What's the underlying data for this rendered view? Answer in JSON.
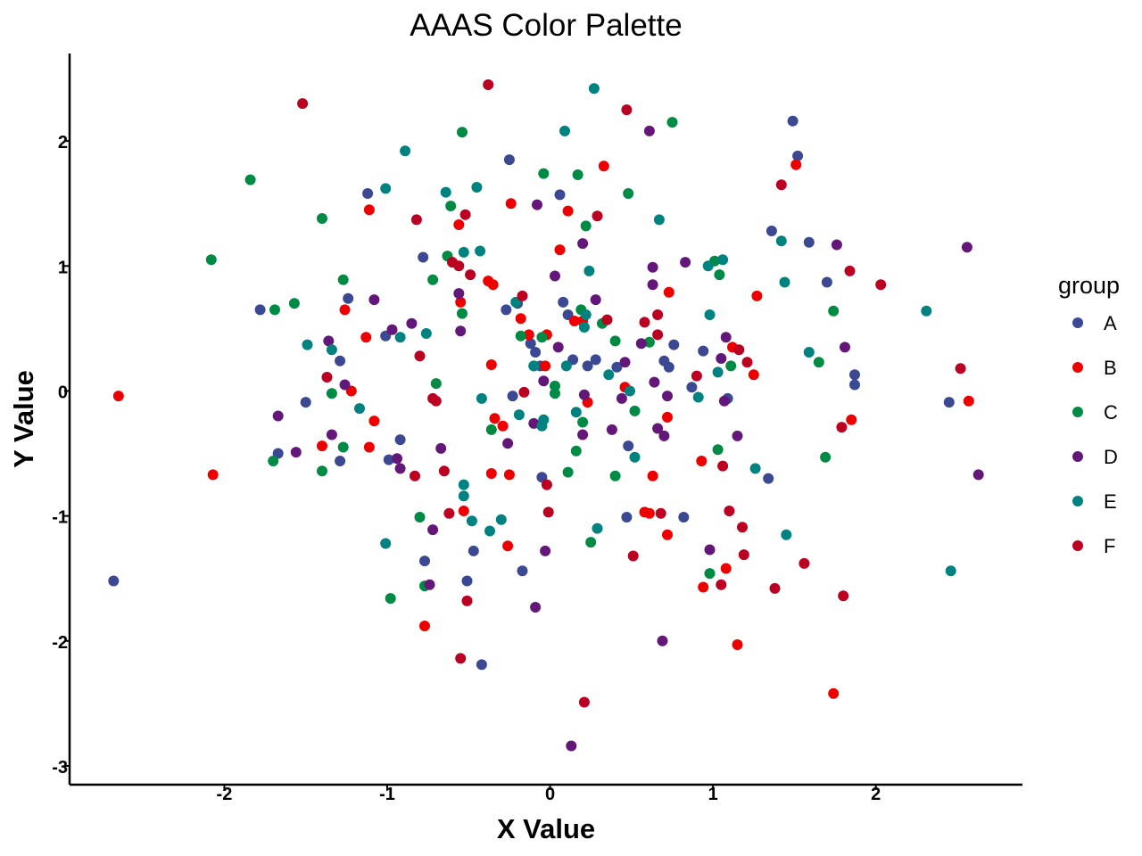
{
  "chart_data": {
    "type": "scatter",
    "title": "AAAS Color Palette",
    "xlabel": "X Value",
    "ylabel": "Y Value",
    "xlim": [
      -2.95,
      2.9
    ],
    "ylim": [
      -3.15,
      2.7
    ],
    "xticks": [
      -2,
      -1,
      0,
      1,
      2
    ],
    "yticks": [
      -3,
      -2,
      -1,
      0,
      1,
      2
    ],
    "xtick_labels": [
      "-2",
      "-1",
      "0",
      "1",
      "2"
    ],
    "ytick_labels": [
      "-3",
      "-2",
      "-1",
      "0",
      "1",
      "2"
    ],
    "grid": false,
    "legend": {
      "title": "group",
      "position": "right"
    },
    "series": [
      {
        "name": "A",
        "color": "#3B4992",
        "points": [
          [
            -2.68,
            -1.52
          ],
          [
            -1.78,
            0.65
          ],
          [
            -1.67,
            -0.5
          ],
          [
            -1.5,
            -0.09
          ],
          [
            -1.29,
            -0.56
          ],
          [
            -1.29,
            0.24
          ],
          [
            -1.24,
            0.74
          ],
          [
            -1.12,
            1.58
          ],
          [
            -1.01,
            0.44
          ],
          [
            -0.99,
            -0.55
          ],
          [
            -0.92,
            -0.39
          ],
          [
            -0.78,
            1.07
          ],
          [
            -0.77,
            -1.36
          ],
          [
            -0.51,
            -1.52
          ],
          [
            -0.47,
            -1.28
          ],
          [
            -0.42,
            -2.19
          ],
          [
            -0.27,
            0.65
          ],
          [
            -0.25,
            1.85
          ],
          [
            -0.23,
            -0.04
          ],
          [
            -0.2,
            0.7
          ],
          [
            -0.17,
            -1.44
          ],
          [
            -0.12,
            0.38
          ],
          [
            -0.09,
            0.31
          ],
          [
            -0.06,
            0.2
          ],
          [
            -0.05,
            -0.69
          ],
          [
            0.06,
            1.57
          ],
          [
            0.08,
            0.71
          ],
          [
            0.11,
            0.61
          ],
          [
            0.14,
            0.25
          ],
          [
            0.23,
            0.2
          ],
          [
            0.28,
            0.25
          ],
          [
            0.41,
            0.19
          ],
          [
            0.47,
            -1.01
          ],
          [
            0.48,
            -0.44
          ],
          [
            0.7,
            0.24
          ],
          [
            0.73,
            0.19
          ],
          [
            0.76,
            0.37
          ],
          [
            0.82,
            -1.01
          ],
          [
            0.87,
            0.03
          ],
          [
            0.94,
            0.32
          ],
          [
            1.09,
            -0.06
          ],
          [
            1.36,
            1.28
          ],
          [
            1.34,
            -0.7
          ],
          [
            1.49,
            2.16
          ],
          [
            1.52,
            1.88
          ],
          [
            1.59,
            1.19
          ],
          [
            1.7,
            0.87
          ],
          [
            1.87,
            0.13
          ],
          [
            1.87,
            0.05
          ],
          [
            2.45,
            -0.09
          ]
        ]
      },
      {
        "name": "B",
        "color": "#EE0000",
        "points": [
          [
            -2.65,
            -0.04
          ],
          [
            -2.07,
            -0.67
          ],
          [
            -1.4,
            -0.44
          ],
          [
            -1.26,
            0.65
          ],
          [
            -1.22,
            0.0
          ],
          [
            -1.13,
            0.43
          ],
          [
            -1.11,
            1.45
          ],
          [
            -1.11,
            -0.45
          ],
          [
            -1.08,
            -0.24
          ],
          [
            -0.77,
            -1.88
          ],
          [
            -0.56,
            1.33
          ],
          [
            -0.55,
            0.71
          ],
          [
            -0.53,
            -0.96
          ],
          [
            -0.38,
            0.88
          ],
          [
            -0.36,
            0.21
          ],
          [
            -0.35,
            0.85
          ],
          [
            -0.36,
            -0.66
          ],
          [
            -0.34,
            -0.22
          ],
          [
            -0.29,
            -0.28
          ],
          [
            -0.26,
            -1.24
          ],
          [
            -0.25,
            -0.67
          ],
          [
            -0.24,
            1.5
          ],
          [
            -0.18,
            0.58
          ],
          [
            -0.13,
            0.45
          ],
          [
            -0.03,
            0.2
          ],
          [
            -0.02,
            0.45
          ],
          [
            0.06,
            1.13
          ],
          [
            0.11,
            1.44
          ],
          [
            0.15,
            0.56
          ],
          [
            0.2,
            0.56
          ],
          [
            0.23,
            -0.09
          ],
          [
            0.33,
            1.8
          ],
          [
            0.46,
            0.03
          ],
          [
            0.58,
            -0.97
          ],
          [
            0.61,
            -0.98
          ],
          [
            0.63,
            -0.68
          ],
          [
            0.72,
            -0.21
          ],
          [
            0.72,
            -1.15
          ],
          [
            0.73,
            0.79
          ],
          [
            0.93,
            -0.56
          ],
          [
            0.94,
            -1.57
          ],
          [
            1.08,
            -1.42
          ],
          [
            1.12,
            0.35
          ],
          [
            1.15,
            -2.03
          ],
          [
            1.25,
            0.13
          ],
          [
            1.27,
            0.76
          ],
          [
            1.51,
            1.81
          ],
          [
            1.74,
            -2.42
          ],
          [
            1.85,
            -0.23
          ],
          [
            2.57,
            -0.08
          ]
        ]
      },
      {
        "name": "C",
        "color": "#008B45",
        "points": [
          [
            -2.08,
            1.05
          ],
          [
            -1.84,
            1.69
          ],
          [
            -1.7,
            -0.56
          ],
          [
            -1.69,
            0.65
          ],
          [
            -1.57,
            0.7
          ],
          [
            -1.4,
            1.38
          ],
          [
            -1.4,
            -0.64
          ],
          [
            -1.34,
            -0.02
          ],
          [
            -1.27,
            0.89
          ],
          [
            -1.27,
            -0.45
          ],
          [
            -0.98,
            -1.66
          ],
          [
            -0.8,
            -1.01
          ],
          [
            -0.77,
            -1.56
          ],
          [
            -0.72,
            0.89
          ],
          [
            -0.7,
            0.06
          ],
          [
            -0.63,
            1.08
          ],
          [
            -0.61,
            1.48
          ],
          [
            -0.54,
            2.07
          ],
          [
            -0.54,
            0.62
          ],
          [
            -0.36,
            -0.31
          ],
          [
            -0.18,
            0.44
          ],
          [
            -0.1,
            0.2
          ],
          [
            -0.05,
            0.43
          ],
          [
            -0.04,
            1.74
          ],
          [
            0.03,
            0.04
          ],
          [
            0.03,
            -0.02
          ],
          [
            0.11,
            -0.65
          ],
          [
            0.16,
            -0.48
          ],
          [
            0.17,
            1.73
          ],
          [
            0.19,
            0.65
          ],
          [
            0.2,
            -0.25
          ],
          [
            0.22,
            1.32
          ],
          [
            0.25,
            -1.21
          ],
          [
            0.32,
            0.54
          ],
          [
            0.4,
            0.4
          ],
          [
            0.4,
            -0.68
          ],
          [
            0.48,
            1.58
          ],
          [
            0.52,
            -0.16
          ],
          [
            0.61,
            0.39
          ],
          [
            0.75,
            2.15
          ],
          [
            0.98,
            -1.46
          ],
          [
            1.01,
            1.04
          ],
          [
            1.03,
            -0.47
          ],
          [
            1.04,
            0.93
          ],
          [
            1.11,
            0.2
          ],
          [
            1.65,
            0.23
          ],
          [
            1.69,
            -0.53
          ],
          [
            1.74,
            0.64
          ]
        ]
      },
      {
        "name": "D",
        "color": "#631879",
        "points": [
          [
            -1.67,
            -0.2
          ],
          [
            -1.56,
            -0.49
          ],
          [
            -1.36,
            0.4
          ],
          [
            -1.34,
            -0.35
          ],
          [
            -1.26,
            0.05
          ],
          [
            -1.08,
            0.73
          ],
          [
            -0.97,
            0.49
          ],
          [
            -0.94,
            -0.54
          ],
          [
            -0.92,
            -0.62
          ],
          [
            -0.85,
            0.54
          ],
          [
            -0.67,
            -0.46
          ],
          [
            -0.72,
            -1.11
          ],
          [
            -0.74,
            -1.55
          ],
          [
            -0.56,
            0.78
          ],
          [
            -0.55,
            0.48
          ],
          [
            -0.26,
            -0.42
          ],
          [
            -0.08,
            1.49
          ],
          [
            -0.1,
            -0.26
          ],
          [
            -0.04,
            0.08
          ],
          [
            -0.03,
            -1.28
          ],
          [
            -0.09,
            -1.73
          ],
          [
            0.03,
            0.92
          ],
          [
            0.05,
            0.35
          ],
          [
            0.13,
            -2.84
          ],
          [
            0.2,
            1.18
          ],
          [
            0.2,
            -0.35
          ],
          [
            0.21,
            -0.03
          ],
          [
            0.28,
            0.73
          ],
          [
            0.38,
            -0.31
          ],
          [
            0.44,
            -0.06
          ],
          [
            0.46,
            0.23
          ],
          [
            0.56,
            0.38
          ],
          [
            0.61,
            2.08
          ],
          [
            0.63,
            0.99
          ],
          [
            0.63,
            0.85
          ],
          [
            0.64,
            0.07
          ],
          [
            0.66,
            -0.3
          ],
          [
            0.69,
            -2.0
          ],
          [
            0.7,
            -0.36
          ],
          [
            0.72,
            -0.04
          ],
          [
            0.83,
            1.03
          ],
          [
            0.98,
            -1.27
          ],
          [
            1.05,
            0.26
          ],
          [
            1.07,
            -0.08
          ],
          [
            1.08,
            0.43
          ],
          [
            1.15,
            -0.36
          ],
          [
            1.76,
            1.17
          ],
          [
            1.81,
            0.35
          ],
          [
            2.56,
            1.15
          ],
          [
            2.63,
            -0.67
          ]
        ]
      },
      {
        "name": "E",
        "color": "#008280",
        "points": [
          [
            -1.49,
            0.37
          ],
          [
            -1.34,
            0.33
          ],
          [
            -1.17,
            -0.14
          ],
          [
            -1.01,
            1.62
          ],
          [
            -1.01,
            -1.22
          ],
          [
            -0.92,
            0.43
          ],
          [
            -0.89,
            1.92
          ],
          [
            -0.76,
            0.46
          ],
          [
            -0.64,
            1.59
          ],
          [
            -0.53,
            1.11
          ],
          [
            -0.53,
            -0.75
          ],
          [
            -0.53,
            -0.84
          ],
          [
            -0.48,
            -1.04
          ],
          [
            -0.45,
            1.63
          ],
          [
            -0.43,
            1.12
          ],
          [
            -0.42,
            -0.06
          ],
          [
            -0.37,
            -1.12
          ],
          [
            -0.3,
            -1.03
          ],
          [
            -0.21,
            0.71
          ],
          [
            -0.19,
            -0.19
          ],
          [
            -0.1,
            0.2
          ],
          [
            -0.05,
            -0.28
          ],
          [
            -0.04,
            -0.23
          ],
          [
            0.09,
            2.08
          ],
          [
            0.1,
            0.2
          ],
          [
            0.16,
            -0.17
          ],
          [
            0.21,
            0.51
          ],
          [
            0.22,
            0.61
          ],
          [
            0.24,
            0.96
          ],
          [
            0.27,
            2.42
          ],
          [
            0.29,
            -1.1
          ],
          [
            0.36,
            0.13
          ],
          [
            0.49,
            0.0
          ],
          [
            0.52,
            -0.53
          ],
          [
            0.67,
            1.37
          ],
          [
            0.91,
            -0.05
          ],
          [
            0.97,
            1.0
          ],
          [
            0.98,
            0.61
          ],
          [
            1.03,
            0.15
          ],
          [
            1.06,
            1.05
          ],
          [
            1.26,
            -0.62
          ],
          [
            1.42,
            1.2
          ],
          [
            1.44,
            0.87
          ],
          [
            1.45,
            -1.15
          ],
          [
            1.59,
            0.31
          ],
          [
            2.31,
            0.64
          ],
          [
            2.46,
            -1.44
          ]
        ]
      },
      {
        "name": "F",
        "color": "#BB0021",
        "points": [
          [
            -1.52,
            2.3
          ],
          [
            -1.37,
            0.11
          ],
          [
            -0.83,
            -0.68
          ],
          [
            -0.82,
            1.37
          ],
          [
            -0.8,
            0.28
          ],
          [
            -0.72,
            -0.06
          ],
          [
            -0.7,
            -0.08
          ],
          [
            -0.65,
            -0.64
          ],
          [
            -0.62,
            -0.98
          ],
          [
            -0.6,
            1.03
          ],
          [
            -0.56,
            1.0
          ],
          [
            -0.55,
            -2.14
          ],
          [
            -0.52,
            1.41
          ],
          [
            -0.51,
            -1.68
          ],
          [
            -0.49,
            0.93
          ],
          [
            -0.38,
            2.45
          ],
          [
            -0.17,
            0.76
          ],
          [
            -0.16,
            -0.01
          ],
          [
            -0.02,
            -0.75
          ],
          [
            -0.01,
            -0.97
          ],
          [
            0.21,
            -2.49
          ],
          [
            0.29,
            1.4
          ],
          [
            0.35,
            0.57
          ],
          [
            0.47,
            2.25
          ],
          [
            0.51,
            -1.32
          ],
          [
            0.58,
            0.55
          ],
          [
            0.66,
            0.45
          ],
          [
            0.66,
            0.61
          ],
          [
            0.68,
            -0.98
          ],
          [
            0.9,
            0.12
          ],
          [
            1.05,
            -1.55
          ],
          [
            1.06,
            -0.6
          ],
          [
            1.1,
            -0.96
          ],
          [
            1.16,
            0.33
          ],
          [
            1.18,
            -1.09
          ],
          [
            1.19,
            -1.31
          ],
          [
            1.21,
            0.23
          ],
          [
            1.38,
            -1.58
          ],
          [
            1.42,
            1.65
          ],
          [
            1.56,
            -1.38
          ],
          [
            1.79,
            -0.29
          ],
          [
            1.8,
            -1.64
          ],
          [
            1.84,
            0.96
          ],
          [
            2.03,
            0.85
          ],
          [
            2.52,
            0.18
          ]
        ]
      }
    ]
  }
}
